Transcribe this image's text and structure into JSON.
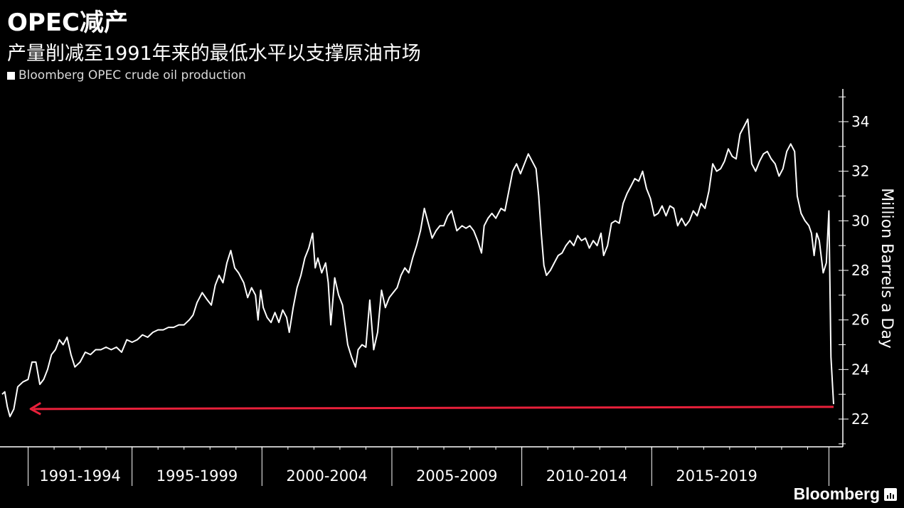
{
  "title": "OPEC减产",
  "subtitle": "产量削减至1991年来的最低水平以支撑原油市场",
  "legend_label": "Bloomberg OPEC crude oil production",
  "brand": "Bloomberg",
  "colors": {
    "background": "#000000",
    "line": "#ffffff",
    "arrow": "#e8203a",
    "axis": "#ffffff"
  },
  "icons": {
    "brand_icon": "bloomberg-terminal-icon"
  },
  "chart_data": {
    "type": "line",
    "ylabel": "Million Barrels a Day",
    "ylim": [
      20.9,
      35.2
    ],
    "yticks": [
      22,
      24,
      26,
      28,
      30,
      32,
      34
    ],
    "x_range": [
      1990.0,
      2021.0
    ],
    "x_groups": [
      {
        "label": "1991-1994",
        "start": 1991,
        "end": 1995
      },
      {
        "label": "1995-1999",
        "start": 1995,
        "end": 2000
      },
      {
        "label": "2000-2004",
        "start": 2000,
        "end": 2005
      },
      {
        "label": "2005-2009",
        "start": 2005,
        "end": 2010
      },
      {
        "label": "2010-2014",
        "start": 2010,
        "end": 2015
      },
      {
        "label": "2015-2019",
        "start": 2015,
        "end": 2020
      }
    ],
    "axis_position": "right",
    "grid": false,
    "series": [
      {
        "name": "Bloomberg OPEC crude oil production",
        "points": [
          [
            1990.0,
            23.0
          ],
          [
            1990.1,
            23.1
          ],
          [
            1990.2,
            22.5
          ],
          [
            1990.3,
            22.1
          ],
          [
            1990.45,
            22.4
          ],
          [
            1990.6,
            23.3
          ],
          [
            1990.8,
            23.5
          ],
          [
            1991.0,
            23.6
          ],
          [
            1991.15,
            24.3
          ],
          [
            1991.3,
            24.3
          ],
          [
            1991.45,
            23.4
          ],
          [
            1991.6,
            23.6
          ],
          [
            1991.75,
            24.0
          ],
          [
            1991.9,
            24.6
          ],
          [
            1992.05,
            24.8
          ],
          [
            1992.2,
            25.2
          ],
          [
            1992.35,
            25.0
          ],
          [
            1992.5,
            25.3
          ],
          [
            1992.65,
            24.6
          ],
          [
            1992.8,
            24.1
          ],
          [
            1993.0,
            24.3
          ],
          [
            1993.2,
            24.7
          ],
          [
            1993.4,
            24.6
          ],
          [
            1993.6,
            24.8
          ],
          [
            1993.8,
            24.8
          ],
          [
            1994.0,
            24.9
          ],
          [
            1994.2,
            24.8
          ],
          [
            1994.4,
            24.9
          ],
          [
            1994.6,
            24.7
          ],
          [
            1994.8,
            25.2
          ],
          [
            1995.0,
            25.1
          ],
          [
            1995.2,
            25.2
          ],
          [
            1995.4,
            25.4
          ],
          [
            1995.6,
            25.3
          ],
          [
            1995.8,
            25.5
          ],
          [
            1996.0,
            25.6
          ],
          [
            1996.2,
            25.6
          ],
          [
            1996.4,
            25.7
          ],
          [
            1996.6,
            25.7
          ],
          [
            1996.8,
            25.8
          ],
          [
            1997.0,
            25.8
          ],
          [
            1997.2,
            26.0
          ],
          [
            1997.35,
            26.2
          ],
          [
            1997.5,
            26.7
          ],
          [
            1997.7,
            27.1
          ],
          [
            1997.9,
            26.8
          ],
          [
            1998.05,
            26.6
          ],
          [
            1998.2,
            27.4
          ],
          [
            1998.35,
            27.8
          ],
          [
            1998.5,
            27.5
          ],
          [
            1998.65,
            28.3
          ],
          [
            1998.8,
            28.8
          ],
          [
            1998.95,
            28.1
          ],
          [
            1999.1,
            27.9
          ],
          [
            1999.3,
            27.5
          ],
          [
            1999.45,
            26.9
          ],
          [
            1999.6,
            27.3
          ],
          [
            1999.75,
            27.0
          ],
          [
            1999.85,
            26.0
          ],
          [
            1999.95,
            27.2
          ],
          [
            2000.05,
            26.5
          ],
          [
            2000.2,
            26.1
          ],
          [
            2000.35,
            25.9
          ],
          [
            2000.5,
            26.3
          ],
          [
            2000.65,
            25.9
          ],
          [
            2000.8,
            26.4
          ],
          [
            2000.95,
            26.1
          ],
          [
            2001.05,
            25.5
          ],
          [
            2001.2,
            26.5
          ],
          [
            2001.35,
            27.3
          ],
          [
            2001.5,
            27.8
          ],
          [
            2001.65,
            28.5
          ],
          [
            2001.8,
            28.9
          ],
          [
            2001.95,
            29.5
          ],
          [
            2002.05,
            28.1
          ],
          [
            2002.15,
            28.5
          ],
          [
            2002.3,
            27.9
          ],
          [
            2002.45,
            28.3
          ],
          [
            2002.55,
            27.5
          ],
          [
            2002.65,
            25.8
          ],
          [
            2002.8,
            27.7
          ],
          [
            2002.95,
            27.0
          ],
          [
            2003.1,
            26.6
          ],
          [
            2003.2,
            25.8
          ],
          [
            2003.3,
            25.0
          ],
          [
            2003.45,
            24.5
          ],
          [
            2003.6,
            24.1
          ],
          [
            2003.7,
            24.8
          ],
          [
            2003.85,
            25.0
          ],
          [
            2004.0,
            24.9
          ],
          [
            2004.15,
            26.8
          ],
          [
            2004.3,
            24.8
          ],
          [
            2004.45,
            25.5
          ],
          [
            2004.6,
            27.2
          ],
          [
            2004.75,
            26.5
          ],
          [
            2004.9,
            26.9
          ],
          [
            2005.05,
            27.1
          ],
          [
            2005.2,
            27.3
          ],
          [
            2005.35,
            27.8
          ],
          [
            2005.5,
            28.1
          ],
          [
            2005.65,
            27.9
          ],
          [
            2005.8,
            28.5
          ],
          [
            2005.95,
            29.0
          ],
          [
            2006.1,
            29.6
          ],
          [
            2006.25,
            30.5
          ],
          [
            2006.4,
            29.9
          ],
          [
            2006.55,
            29.3
          ],
          [
            2006.7,
            29.6
          ],
          [
            2006.85,
            29.8
          ],
          [
            2007.0,
            29.8
          ],
          [
            2007.15,
            30.2
          ],
          [
            2007.3,
            30.4
          ],
          [
            2007.5,
            29.6
          ],
          [
            2007.7,
            29.8
          ],
          [
            2007.85,
            29.7
          ],
          [
            2008.0,
            29.8
          ],
          [
            2008.15,
            29.6
          ],
          [
            2008.3,
            29.2
          ],
          [
            2008.45,
            28.7
          ],
          [
            2008.55,
            29.8
          ],
          [
            2008.7,
            30.1
          ],
          [
            2008.85,
            30.3
          ],
          [
            2009.0,
            30.1
          ],
          [
            2009.2,
            30.5
          ],
          [
            2009.35,
            30.4
          ],
          [
            2009.5,
            31.2
          ],
          [
            2009.65,
            32.0
          ],
          [
            2009.8,
            32.3
          ],
          [
            2009.95,
            31.9
          ],
          [
            2010.1,
            32.3
          ],
          [
            2010.25,
            32.7
          ],
          [
            2010.4,
            32.4
          ],
          [
            2010.55,
            32.1
          ],
          [
            2010.65,
            31.0
          ],
          [
            2010.75,
            29.5
          ],
          [
            2010.85,
            28.2
          ],
          [
            2010.95,
            27.8
          ],
          [
            2011.1,
            28.0
          ],
          [
            2011.25,
            28.3
          ],
          [
            2011.4,
            28.6
          ],
          [
            2011.55,
            28.7
          ],
          [
            2011.7,
            29.0
          ],
          [
            2011.85,
            29.2
          ],
          [
            2012.0,
            29.0
          ],
          [
            2012.15,
            29.4
          ],
          [
            2012.3,
            29.2
          ],
          [
            2012.45,
            29.3
          ],
          [
            2012.6,
            28.9
          ],
          [
            2012.75,
            29.2
          ],
          [
            2012.9,
            29.0
          ],
          [
            2013.05,
            29.5
          ],
          [
            2013.15,
            28.6
          ],
          [
            2013.3,
            29.0
          ],
          [
            2013.45,
            29.9
          ],
          [
            2013.6,
            30.0
          ],
          [
            2013.75,
            29.9
          ],
          [
            2013.9,
            30.7
          ],
          [
            2014.05,
            31.1
          ],
          [
            2014.2,
            31.4
          ],
          [
            2014.35,
            31.7
          ],
          [
            2014.5,
            31.6
          ],
          [
            2014.65,
            32.0
          ],
          [
            2014.8,
            31.3
          ],
          [
            2014.95,
            30.9
          ],
          [
            2015.1,
            30.2
          ],
          [
            2015.25,
            30.3
          ],
          [
            2015.4,
            30.6
          ],
          [
            2015.55,
            30.2
          ],
          [
            2015.7,
            30.6
          ],
          [
            2015.85,
            30.5
          ],
          [
            2016.0,
            29.8
          ],
          [
            2016.15,
            30.1
          ],
          [
            2016.3,
            29.8
          ],
          [
            2016.45,
            30.0
          ],
          [
            2016.6,
            30.4
          ],
          [
            2016.75,
            30.2
          ],
          [
            2016.9,
            30.7
          ],
          [
            2017.05,
            30.5
          ],
          [
            2017.2,
            31.2
          ],
          [
            2017.35,
            32.3
          ],
          [
            2017.5,
            32.0
          ],
          [
            2017.65,
            32.1
          ],
          [
            2017.8,
            32.4
          ],
          [
            2017.95,
            32.9
          ],
          [
            2018.1,
            32.6
          ],
          [
            2018.25,
            32.5
          ],
          [
            2018.4,
            33.5
          ],
          [
            2018.55,
            33.8
          ],
          [
            2018.7,
            34.1
          ],
          [
            2018.85,
            32.3
          ],
          [
            2019.0,
            32.0
          ],
          [
            2019.15,
            32.4
          ],
          [
            2019.3,
            32.7
          ],
          [
            2019.45,
            32.8
          ],
          [
            2019.6,
            32.5
          ],
          [
            2019.75,
            32.3
          ],
          [
            2019.9,
            31.8
          ],
          [
            2020.05,
            32.1
          ],
          [
            2020.2,
            32.8
          ],
          [
            2020.35,
            33.1
          ],
          [
            2020.5,
            32.8
          ],
          [
            2020.6,
            31.0
          ],
          [
            2020.75,
            30.3
          ],
          [
            2020.9,
            30.0
          ],
          [
            2021.05,
            29.8
          ],
          [
            2021.15,
            29.5
          ],
          [
            2021.25,
            28.6
          ],
          [
            2021.35,
            29.5
          ],
          [
            2021.45,
            29.2
          ],
          [
            2021.6,
            27.9
          ],
          [
            2021.72,
            28.3
          ],
          [
            2021.82,
            30.4
          ],
          [
            2021.9,
            24.5
          ],
          [
            2022.0,
            22.6
          ]
        ]
      }
    ],
    "annotation": {
      "type": "arrow",
      "y": 22.45,
      "x_from": 2022.0,
      "x_to": 1991.1
    }
  }
}
